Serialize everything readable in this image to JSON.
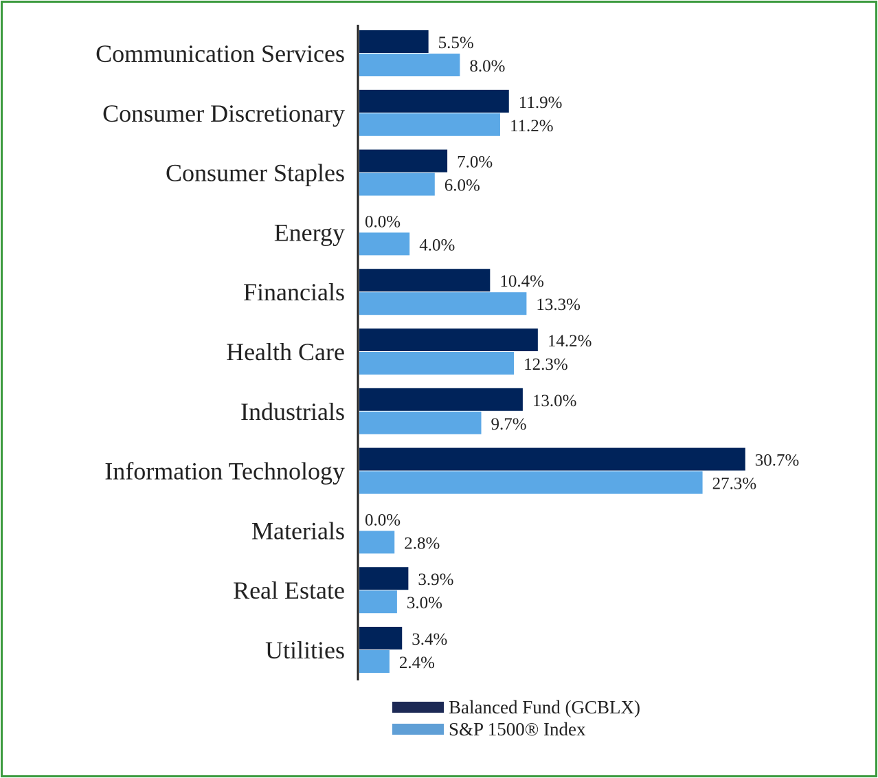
{
  "chart_data": {
    "type": "bar",
    "orientation": "horizontal",
    "categories": [
      "Communication Services",
      "Consumer Discretionary",
      "Consumer Staples",
      "Energy",
      "Financials",
      "Health Care",
      "Industrials",
      "Information Technology",
      "Materials",
      "Real Estate",
      "Utilities"
    ],
    "series": [
      {
        "name": "Balanced Fund (GCBLX)",
        "color": "#00235a",
        "values": [
          5.5,
          11.9,
          7.0,
          0.0,
          10.4,
          14.2,
          13.0,
          30.7,
          0.0,
          3.9,
          3.4
        ]
      },
      {
        "name": "S&P 1500® Index",
        "color": "#5ba8e6",
        "values": [
          8.0,
          11.2,
          6.0,
          4.0,
          13.3,
          12.3,
          9.7,
          27.3,
          2.8,
          3.0,
          2.4
        ]
      }
    ],
    "value_format": "percent, 1 decimal",
    "legend_position": "bottom",
    "grid": false,
    "xlim": [
      0,
      31
    ]
  },
  "legend_colors": {
    "fund": "#1c2955",
    "index": "#5f9fd6"
  },
  "border_color": "#3c9a3f"
}
